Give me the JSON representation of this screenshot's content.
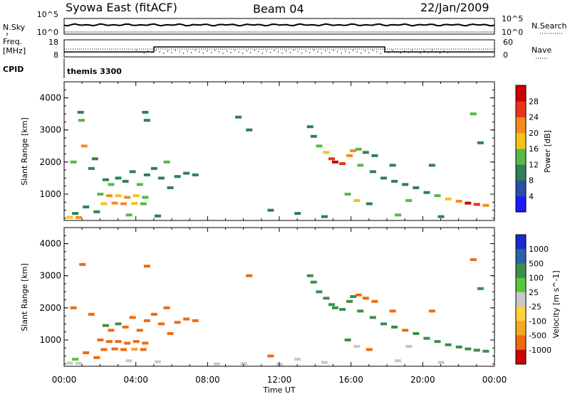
{
  "header": {
    "station": "Syowa East (fitACF)",
    "beam": "Beam 04",
    "date": "22/Jan/2009"
  },
  "side_labels": {
    "nsky": "N.Sky",
    "nsearch": "N.Search",
    "freq_line1": "Freq.",
    "freq_line2": "[MHz]",
    "nave": "Nave",
    "cpid": "CPID",
    "cpid_value": "themis 3300"
  },
  "noise_panel": {
    "left_ticks": [
      "10^5",
      "10^0"
    ],
    "right_ticks": [
      "10^5",
      "10^0"
    ]
  },
  "freq_panel": {
    "left_ticks": [
      "18",
      "8"
    ],
    "right_ticks": [
      "60",
      "0"
    ]
  },
  "colors": {
    "power_scale": [
      "#1a1aff",
      "#2a4fa8",
      "#2e7f5a",
      "#58b848",
      "#f4c21a",
      "#f58a1e",
      "#e8351a",
      "#d00000"
    ]
  },
  "chart_data": [
    {
      "type": "heatmap",
      "title": "Power",
      "ylabel": "Slant Range [km]",
      "ylim": [
        180,
        4500
      ],
      "yticks": [
        "1000",
        "2000",
        "3000",
        "4000"
      ],
      "xlabel": "Time UT",
      "xlim": [
        0,
        24
      ],
      "xticks": [
        "00:00",
        "04:00",
        "08:00",
        "12:00",
        "16:00",
        "20:00",
        "00:00"
      ],
      "colorbar": {
        "label": "Power [dB]",
        "ticks": [
          "4",
          "8",
          "12",
          "16",
          "20",
          "24",
          "28"
        ],
        "range": [
          0,
          32
        ]
      },
      "cells": [
        {
          "t": 0.9,
          "r": 3550,
          "v": 10
        },
        {
          "t": 0.95,
          "r": 3300,
          "v": 14
        },
        {
          "t": 1.1,
          "r": 2500,
          "v": 20
        },
        {
          "t": 0.5,
          "r": 2000,
          "v": 12
        },
        {
          "t": 1.5,
          "r": 1800,
          "v": 8
        },
        {
          "t": 1.7,
          "r": 2100,
          "v": 10
        },
        {
          "t": 2.3,
          "r": 1450,
          "v": 8
        },
        {
          "t": 2.6,
          "r": 1300,
          "v": 12
        },
        {
          "t": 3.0,
          "r": 1500,
          "v": 8
        },
        {
          "t": 3.4,
          "r": 1400,
          "v": 10
        },
        {
          "t": 3.8,
          "r": 1700,
          "v": 8
        },
        {
          "t": 4.2,
          "r": 1300,
          "v": 12
        },
        {
          "t": 4.6,
          "r": 1600,
          "v": 8
        },
        {
          "t": 5.0,
          "r": 1800,
          "v": 10
        },
        {
          "t": 5.4,
          "r": 1500,
          "v": 8
        },
        {
          "t": 5.7,
          "r": 2000,
          "v": 12
        },
        {
          "t": 5.9,
          "r": 1200,
          "v": 10
        },
        {
          "t": 2.0,
          "r": 1000,
          "v": 12
        },
        {
          "t": 2.5,
          "r": 950,
          "v": 20
        },
        {
          "t": 3.0,
          "r": 950,
          "v": 16
        },
        {
          "t": 3.5,
          "r": 900,
          "v": 22
        },
        {
          "t": 4.0,
          "r": 950,
          "v": 18
        },
        {
          "t": 4.5,
          "r": 900,
          "v": 14
        },
        {
          "t": 2.2,
          "r": 700,
          "v": 16
        },
        {
          "t": 2.8,
          "r": 720,
          "v": 22
        },
        {
          "t": 3.3,
          "r": 700,
          "v": 20
        },
        {
          "t": 3.9,
          "r": 710,
          "v": 16
        },
        {
          "t": 4.4,
          "r": 700,
          "v": 12
        },
        {
          "t": 1.2,
          "r": 600,
          "v": 8
        },
        {
          "t": 0.6,
          "r": 400,
          "v": 10
        },
        {
          "t": 1.8,
          "r": 450,
          "v": 8
        },
        {
          "t": 3.6,
          "r": 350,
          "v": 12
        },
        {
          "t": 0.3,
          "r": 280,
          "v": 18
        },
        {
          "t": 0.8,
          "r": 270,
          "v": 22
        },
        {
          "t": 5.2,
          "r": 320,
          "v": 8
        },
        {
          "t": 6.8,
          "r": 1650,
          "v": 8
        },
        {
          "t": 7.3,
          "r": 1600,
          "v": 10
        },
        {
          "t": 4.6,
          "r": 3300,
          "v": 10
        },
        {
          "t": 4.5,
          "r": 3550,
          "v": 8
        },
        {
          "t": 9.7,
          "r": 3400,
          "v": 8
        },
        {
          "t": 13.7,
          "r": 3100,
          "v": 10
        },
        {
          "t": 13.9,
          "r": 2800,
          "v": 8
        },
        {
          "t": 14.2,
          "r": 2500,
          "v": 12
        },
        {
          "t": 14.6,
          "r": 2300,
          "v": 16
        },
        {
          "t": 14.9,
          "r": 2100,
          "v": 24
        },
        {
          "t": 15.1,
          "r": 2000,
          "v": 28
        },
        {
          "t": 15.5,
          "r": 1950,
          "v": 26
        },
        {
          "t": 15.9,
          "r": 2200,
          "v": 22
        },
        {
          "t": 16.1,
          "r": 2350,
          "v": 20
        },
        {
          "t": 16.4,
          "r": 2400,
          "v": 12
        },
        {
          "t": 16.8,
          "r": 2300,
          "v": 10
        },
        {
          "t": 17.3,
          "r": 2200,
          "v": 8
        },
        {
          "t": 16.5,
          "r": 1900,
          "v": 12
        },
        {
          "t": 17.2,
          "r": 1700,
          "v": 10
        },
        {
          "t": 17.8,
          "r": 1500,
          "v": 8
        },
        {
          "t": 18.4,
          "r": 1400,
          "v": 10
        },
        {
          "t": 19.0,
          "r": 1300,
          "v": 8
        },
        {
          "t": 19.6,
          "r": 1200,
          "v": 10
        },
        {
          "t": 20.2,
          "r": 1050,
          "v": 8
        },
        {
          "t": 20.8,
          "r": 950,
          "v": 12
        },
        {
          "t": 21.4,
          "r": 850,
          "v": 16
        },
        {
          "t": 22.0,
          "r": 780,
          "v": 20
        },
        {
          "t": 22.5,
          "r": 720,
          "v": 28
        },
        {
          "t": 23.0,
          "r": 680,
          "v": 24
        },
        {
          "t": 23.5,
          "r": 650,
          "v": 20
        },
        {
          "t": 19.2,
          "r": 800,
          "v": 12
        },
        {
          "t": 17.0,
          "r": 700,
          "v": 10
        },
        {
          "t": 15.8,
          "r": 1000,
          "v": 14
        },
        {
          "t": 16.3,
          "r": 800,
          "v": 16
        },
        {
          "t": 11.5,
          "r": 500,
          "v": 8
        },
        {
          "t": 13.0,
          "r": 400,
          "v": 10
        },
        {
          "t": 14.5,
          "r": 300,
          "v": 8
        },
        {
          "t": 18.6,
          "r": 350,
          "v": 12
        },
        {
          "t": 21.0,
          "r": 300,
          "v": 10
        },
        {
          "t": 22.8,
          "r": 3500,
          "v": 12
        },
        {
          "t": 23.2,
          "r": 2600,
          "v": 10
        },
        {
          "t": 10.3,
          "r": 3000,
          "v": 8
        },
        {
          "t": 6.3,
          "r": 1550,
          "v": 10
        },
        {
          "t": 20.5,
          "r": 1900,
          "v": 8
        },
        {
          "t": 18.3,
          "r": 1900,
          "v": 10
        }
      ]
    },
    {
      "type": "heatmap",
      "title": "Velocity",
      "ylabel": "Slant Range [km]",
      "ylim": [
        180,
        4500
      ],
      "yticks": [
        "1000",
        "2000",
        "3000",
        "4000"
      ],
      "xlabel": "Time UT",
      "xlim": [
        0,
        24
      ],
      "xticks": [
        "00:00",
        "04:00",
        "08:00",
        "12:00",
        "16:00",
        "20:00",
        "00:00"
      ],
      "colorbar": {
        "label": "Velocity [m s^-1]",
        "ticks": [
          "1000",
          "500",
          "100",
          "25",
          "-25",
          "-100",
          "-500",
          "-1000"
        ]
      },
      "cells": [
        {
          "t": 1.0,
          "r": 3350,
          "v": -300
        },
        {
          "t": 0.5,
          "r": 2000,
          "v": -150
        },
        {
          "t": 1.5,
          "r": 1800,
          "v": -200
        },
        {
          "t": 2.3,
          "r": 1450,
          "v": 150
        },
        {
          "t": 2.6,
          "r": 1300,
          "v": -300
        },
        {
          "t": 3.0,
          "r": 1500,
          "v": 200
        },
        {
          "t": 3.4,
          "r": 1400,
          "v": -250
        },
        {
          "t": 3.8,
          "r": 1700,
          "v": -300
        },
        {
          "t": 4.2,
          "r": 1300,
          "v": -200
        },
        {
          "t": 4.6,
          "r": 1600,
          "v": -350
        },
        {
          "t": 5.0,
          "r": 1800,
          "v": -300
        },
        {
          "t": 5.4,
          "r": 1500,
          "v": -250
        },
        {
          "t": 5.7,
          "r": 2000,
          "v": -300
        },
        {
          "t": 5.9,
          "r": 1200,
          "v": -200
        },
        {
          "t": 2.0,
          "r": 1000,
          "v": -250
        },
        {
          "t": 2.5,
          "r": 950,
          "v": -150
        },
        {
          "t": 3.0,
          "r": 950,
          "v": -300
        },
        {
          "t": 3.5,
          "r": 900,
          "v": -200
        },
        {
          "t": 4.0,
          "r": 950,
          "v": -250
        },
        {
          "t": 4.5,
          "r": 900,
          "v": -300
        },
        {
          "t": 2.2,
          "r": 700,
          "v": -200
        },
        {
          "t": 2.8,
          "r": 720,
          "v": -150
        },
        {
          "t": 3.3,
          "r": 700,
          "v": -250
        },
        {
          "t": 3.9,
          "r": 710,
          "v": -100
        },
        {
          "t": 4.4,
          "r": 700,
          "v": -200
        },
        {
          "t": 1.2,
          "r": 600,
          "v": -150
        },
        {
          "t": 0.6,
          "r": 400,
          "v": 50
        },
        {
          "t": 1.8,
          "r": 450,
          "v": -120
        },
        {
          "t": 3.6,
          "r": 350,
          "v": 0
        },
        {
          "t": 0.3,
          "r": 280,
          "v": 0
        },
        {
          "t": 0.8,
          "r": 270,
          "v": 10
        },
        {
          "t": 5.2,
          "r": 320,
          "v": 0
        },
        {
          "t": 6.8,
          "r": 1650,
          "v": -200
        },
        {
          "t": 7.3,
          "r": 1600,
          "v": -300
        },
        {
          "t": 4.6,
          "r": 3300,
          "v": -250
        },
        {
          "t": 13.7,
          "r": 3000,
          "v": 200
        },
        {
          "t": 13.9,
          "r": 2800,
          "v": 150
        },
        {
          "t": 14.2,
          "r": 2500,
          "v": 250
        },
        {
          "t": 14.6,
          "r": 2300,
          "v": 200
        },
        {
          "t": 14.9,
          "r": 2100,
          "v": 300
        },
        {
          "t": 15.1,
          "r": 2000,
          "v": 200
        },
        {
          "t": 15.5,
          "r": 1950,
          "v": 250
        },
        {
          "t": 15.9,
          "r": 2200,
          "v": 150
        },
        {
          "t": 16.1,
          "r": 2350,
          "v": 200
        },
        {
          "t": 16.4,
          "r": 2400,
          "v": -150
        },
        {
          "t": 16.8,
          "r": 2300,
          "v": -200
        },
        {
          "t": 17.3,
          "r": 2200,
          "v": -150
        },
        {
          "t": 16.5,
          "r": 1900,
          "v": 200
        },
        {
          "t": 17.2,
          "r": 1700,
          "v": 150
        },
        {
          "t": 17.8,
          "r": 1500,
          "v": 250
        },
        {
          "t": 18.4,
          "r": 1400,
          "v": 200
        },
        {
          "t": 19.0,
          "r": 1300,
          "v": -150
        },
        {
          "t": 19.6,
          "r": 1200,
          "v": 150
        },
        {
          "t": 20.2,
          "r": 1050,
          "v": 200
        },
        {
          "t": 20.8,
          "r": 950,
          "v": 250
        },
        {
          "t": 21.4,
          "r": 850,
          "v": 200
        },
        {
          "t": 22.0,
          "r": 780,
          "v": 300
        },
        {
          "t": 22.5,
          "r": 720,
          "v": 250
        },
        {
          "t": 23.0,
          "r": 680,
          "v": 200
        },
        {
          "t": 23.5,
          "r": 650,
          "v": 300
        },
        {
          "t": 19.2,
          "r": 800,
          "v": 0
        },
        {
          "t": 17.0,
          "r": 700,
          "v": -150
        },
        {
          "t": 15.8,
          "r": 1000,
          "v": 150
        },
        {
          "t": 16.3,
          "r": 800,
          "v": 0
        },
        {
          "t": 11.5,
          "r": 500,
          "v": -200
        },
        {
          "t": 13.0,
          "r": 400,
          "v": 0
        },
        {
          "t": 14.5,
          "r": 300,
          "v": 10
        },
        {
          "t": 18.6,
          "r": 350,
          "v": 0
        },
        {
          "t": 21.0,
          "r": 300,
          "v": -10
        },
        {
          "t": 22.8,
          "r": 3500,
          "v": -200
        },
        {
          "t": 23.2,
          "r": 2600,
          "v": 150
        },
        {
          "t": 10.3,
          "r": 3000,
          "v": -150
        },
        {
          "t": 6.3,
          "r": 1550,
          "v": -200
        },
        {
          "t": 20.5,
          "r": 1900,
          "v": -150
        },
        {
          "t": 18.3,
          "r": 1900,
          "v": -200
        },
        {
          "t": 8.5,
          "r": 250,
          "v": 0
        },
        {
          "t": 10.0,
          "r": 260,
          "v": -10
        },
        {
          "t": 12.0,
          "r": 240,
          "v": 0
        }
      ]
    }
  ]
}
